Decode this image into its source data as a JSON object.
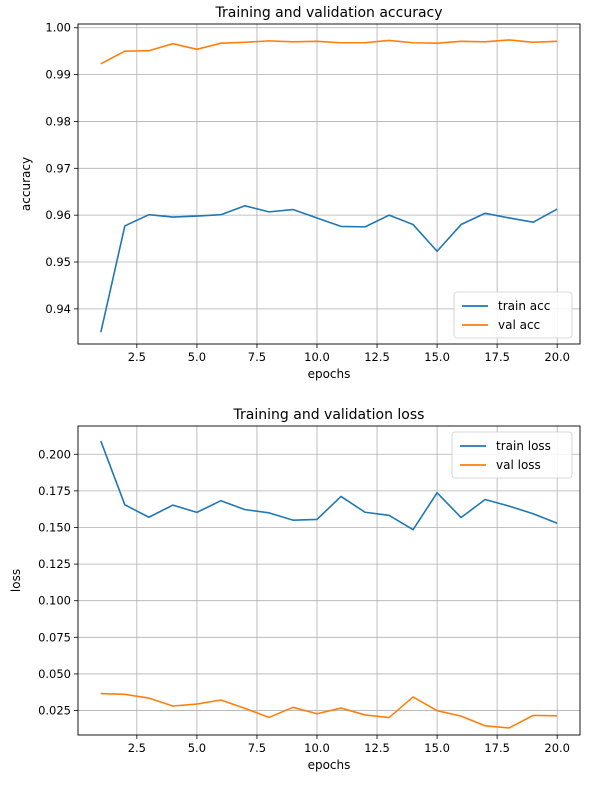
{
  "chart_data": [
    {
      "type": "line",
      "title": "Training and validation accuracy",
      "xlabel": "epochs",
      "ylabel": "accuracy",
      "x": [
        1,
        2,
        3,
        4,
        5,
        6,
        7,
        8,
        9,
        10,
        11,
        12,
        13,
        14,
        15,
        16,
        17,
        18,
        19,
        20
      ],
      "series": [
        {
          "name": "train acc",
          "color": "#1f77b4",
          "values": [
            0.935,
            0.9577,
            0.9601,
            0.9596,
            0.9598,
            0.9601,
            0.962,
            0.9607,
            0.9612,
            0.9594,
            0.9576,
            0.9575,
            0.96,
            0.958,
            0.9523,
            0.958,
            0.9604,
            0.9594,
            0.9585,
            0.9613
          ]
        },
        {
          "name": "val acc",
          "color": "#ff7f0e",
          "values": [
            0.9923,
            0.995,
            0.9951,
            0.9966,
            0.9954,
            0.9967,
            0.9969,
            0.9972,
            0.997,
            0.9971,
            0.9968,
            0.9968,
            0.9973,
            0.9968,
            0.9967,
            0.9971,
            0.997,
            0.9974,
            0.9969,
            0.9971
          ]
        }
      ],
      "xlim": [
        0.05,
        20.95
      ],
      "ylim": [
        0.9325,
        1.0008
      ],
      "xticks": [
        2.5,
        5.0,
        7.5,
        10.0,
        12.5,
        15.0,
        17.5,
        20.0
      ],
      "xtick_labels": [
        "2.5",
        "5.0",
        "7.5",
        "10.0",
        "12.5",
        "15.0",
        "17.5",
        "20.0"
      ],
      "yticks": [
        0.94,
        0.95,
        0.96,
        0.97,
        0.98,
        0.99,
        1.0
      ],
      "ytick_labels": [
        "0.94",
        "0.95",
        "0.96",
        "0.97",
        "0.98",
        "0.99",
        "1.00"
      ],
      "grid": true,
      "legend_position": "lower-right"
    },
    {
      "type": "line",
      "title": "Training and validation loss",
      "xlabel": "epochs",
      "ylabel": "loss",
      "x": [
        1,
        2,
        3,
        4,
        5,
        6,
        7,
        8,
        9,
        10,
        11,
        12,
        13,
        14,
        15,
        16,
        17,
        18,
        19,
        20
      ],
      "series": [
        {
          "name": "train loss",
          "color": "#1f77b4",
          "values": [
            0.209,
            0.1655,
            0.157,
            0.1653,
            0.1603,
            0.1683,
            0.1622,
            0.16,
            0.155,
            0.1555,
            0.1712,
            0.1604,
            0.1583,
            0.1485,
            0.1737,
            0.1568,
            0.1691,
            0.1646,
            0.1594,
            0.1529
          ]
        },
        {
          "name": "val loss",
          "color": "#ff7f0e",
          "values": [
            0.0366,
            0.0361,
            0.0335,
            0.0281,
            0.0294,
            0.0322,
            0.0265,
            0.0203,
            0.0272,
            0.0228,
            0.0267,
            0.022,
            0.0202,
            0.0343,
            0.0249,
            0.0212,
            0.0146,
            0.0131,
            0.0217,
            0.0214
          ]
        }
      ],
      "xlim": [
        0.05,
        20.95
      ],
      "ylim": [
        0.0083,
        0.2193
      ],
      "xticks": [
        2.5,
        5.0,
        7.5,
        10.0,
        12.5,
        15.0,
        17.5,
        20.0
      ],
      "xtick_labels": [
        "2.5",
        "5.0",
        "7.5",
        "10.0",
        "12.5",
        "15.0",
        "17.5",
        "20.0"
      ],
      "yticks": [
        0.025,
        0.05,
        0.075,
        0.1,
        0.125,
        0.15,
        0.175,
        0.2
      ],
      "ytick_labels": [
        "0.025",
        "0.050",
        "0.075",
        "0.100",
        "0.125",
        "0.150",
        "0.175",
        "0.200"
      ],
      "grid": true,
      "legend_position": "upper-right"
    }
  ]
}
